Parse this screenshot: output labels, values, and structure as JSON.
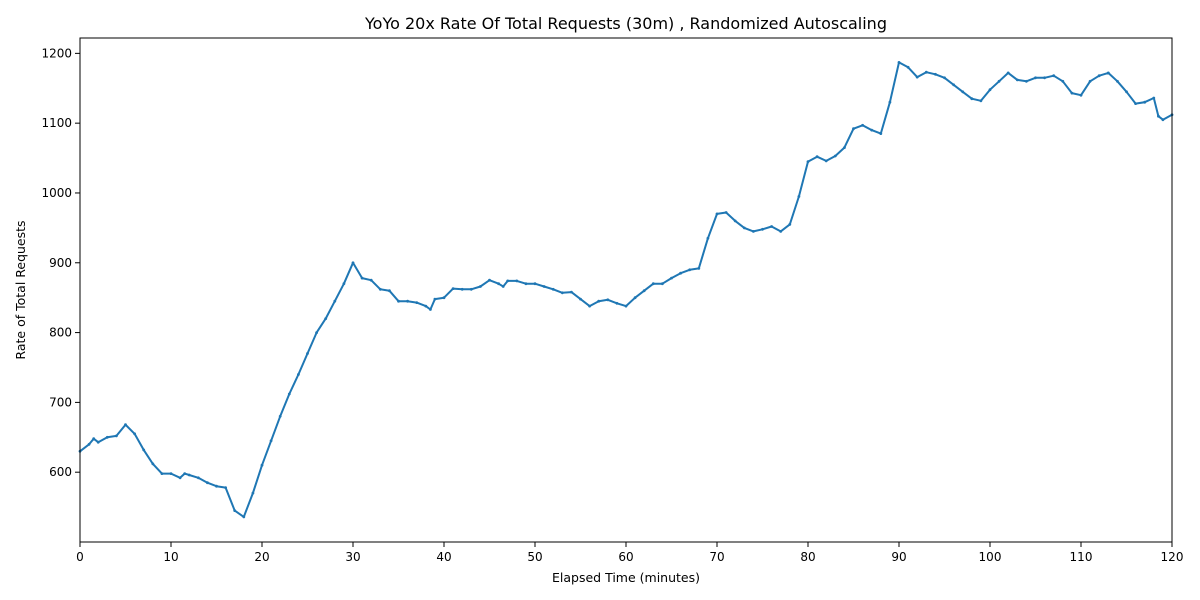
{
  "colors": {
    "series": "#1f77b4",
    "axes": "#000000",
    "background": "#ffffff"
  },
  "chart_data": {
    "type": "line",
    "title": "YoYo 20x Rate Of Total Requests (30m) , Randomized Autoscaling",
    "xlabel": "Elapsed Time (minutes)",
    "ylabel": "Rate of Total Requests",
    "xlim": [
      0,
      120
    ],
    "ylim": [
      500,
      1222
    ],
    "xticks": [
      0,
      10,
      20,
      30,
      40,
      50,
      60,
      70,
      80,
      90,
      100,
      110,
      120
    ],
    "yticks": [
      600,
      700,
      800,
      900,
      1000,
      1100,
      1200
    ],
    "grid": false,
    "legend": "none",
    "series": [
      {
        "color": "#1f77b4",
        "x": [
          0,
          1,
          1.5,
          2,
          3,
          4,
          5,
          6,
          7,
          8,
          9,
          10,
          11,
          11.5,
          12,
          13,
          14,
          15,
          16,
          17,
          18,
          19,
          20,
          21,
          22,
          23,
          24,
          25,
          26,
          27,
          28,
          29,
          30,
          31,
          32,
          33,
          34,
          35,
          36,
          37,
          38,
          38.5,
          39,
          40,
          41,
          42,
          43,
          44,
          45,
          46,
          46.5,
          47,
          48,
          49,
          50,
          51,
          52,
          53,
          54,
          55,
          56,
          57,
          58,
          59,
          60,
          61,
          62,
          63,
          64,
          65,
          66,
          67,
          68,
          69,
          70,
          71,
          72,
          73,
          74,
          75,
          76,
          77,
          78,
          79,
          80,
          81,
          82,
          83,
          84,
          85,
          86,
          87,
          88,
          89,
          90,
          91,
          92,
          93,
          94,
          95,
          96,
          97,
          98,
          99,
          100,
          101,
          102,
          103,
          104,
          105,
          106,
          107,
          108,
          109,
          110,
          111,
          112,
          113,
          114,
          115,
          116,
          117,
          118,
          118.5,
          119,
          120
        ],
        "y": [
          630,
          640,
          648,
          643,
          650,
          652,
          668,
          655,
          632,
          612,
          598,
          598,
          592,
          598,
          596,
          592,
          585,
          580,
          578,
          545,
          536,
          570,
          610,
          645,
          680,
          712,
          740,
          770,
          800,
          820,
          845,
          870,
          900,
          878,
          875,
          862,
          860,
          845,
          845,
          843,
          838,
          833,
          848,
          850,
          863,
          862,
          862,
          866,
          875,
          870,
          866,
          874,
          874,
          870,
          870,
          866,
          862,
          857,
          858,
          848,
          838,
          845,
          847,
          842,
          838,
          850,
          860,
          870,
          870,
          878,
          885,
          890,
          892,
          935,
          970,
          972,
          960,
          950,
          945,
          948,
          952,
          945,
          955,
          995,
          1045,
          1052,
          1046,
          1053,
          1065,
          1092,
          1097,
          1090,
          1085,
          1130,
          1187,
          1180,
          1166,
          1173,
          1170,
          1165,
          1155,
          1145,
          1135,
          1132,
          1148,
          1160,
          1172,
          1162,
          1160,
          1165,
          1165,
          1168,
          1160,
          1143,
          1140,
          1160,
          1168,
          1172,
          1160,
          1145,
          1128,
          1130,
          1136,
          1110,
          1105,
          1112
        ]
      }
    ]
  }
}
